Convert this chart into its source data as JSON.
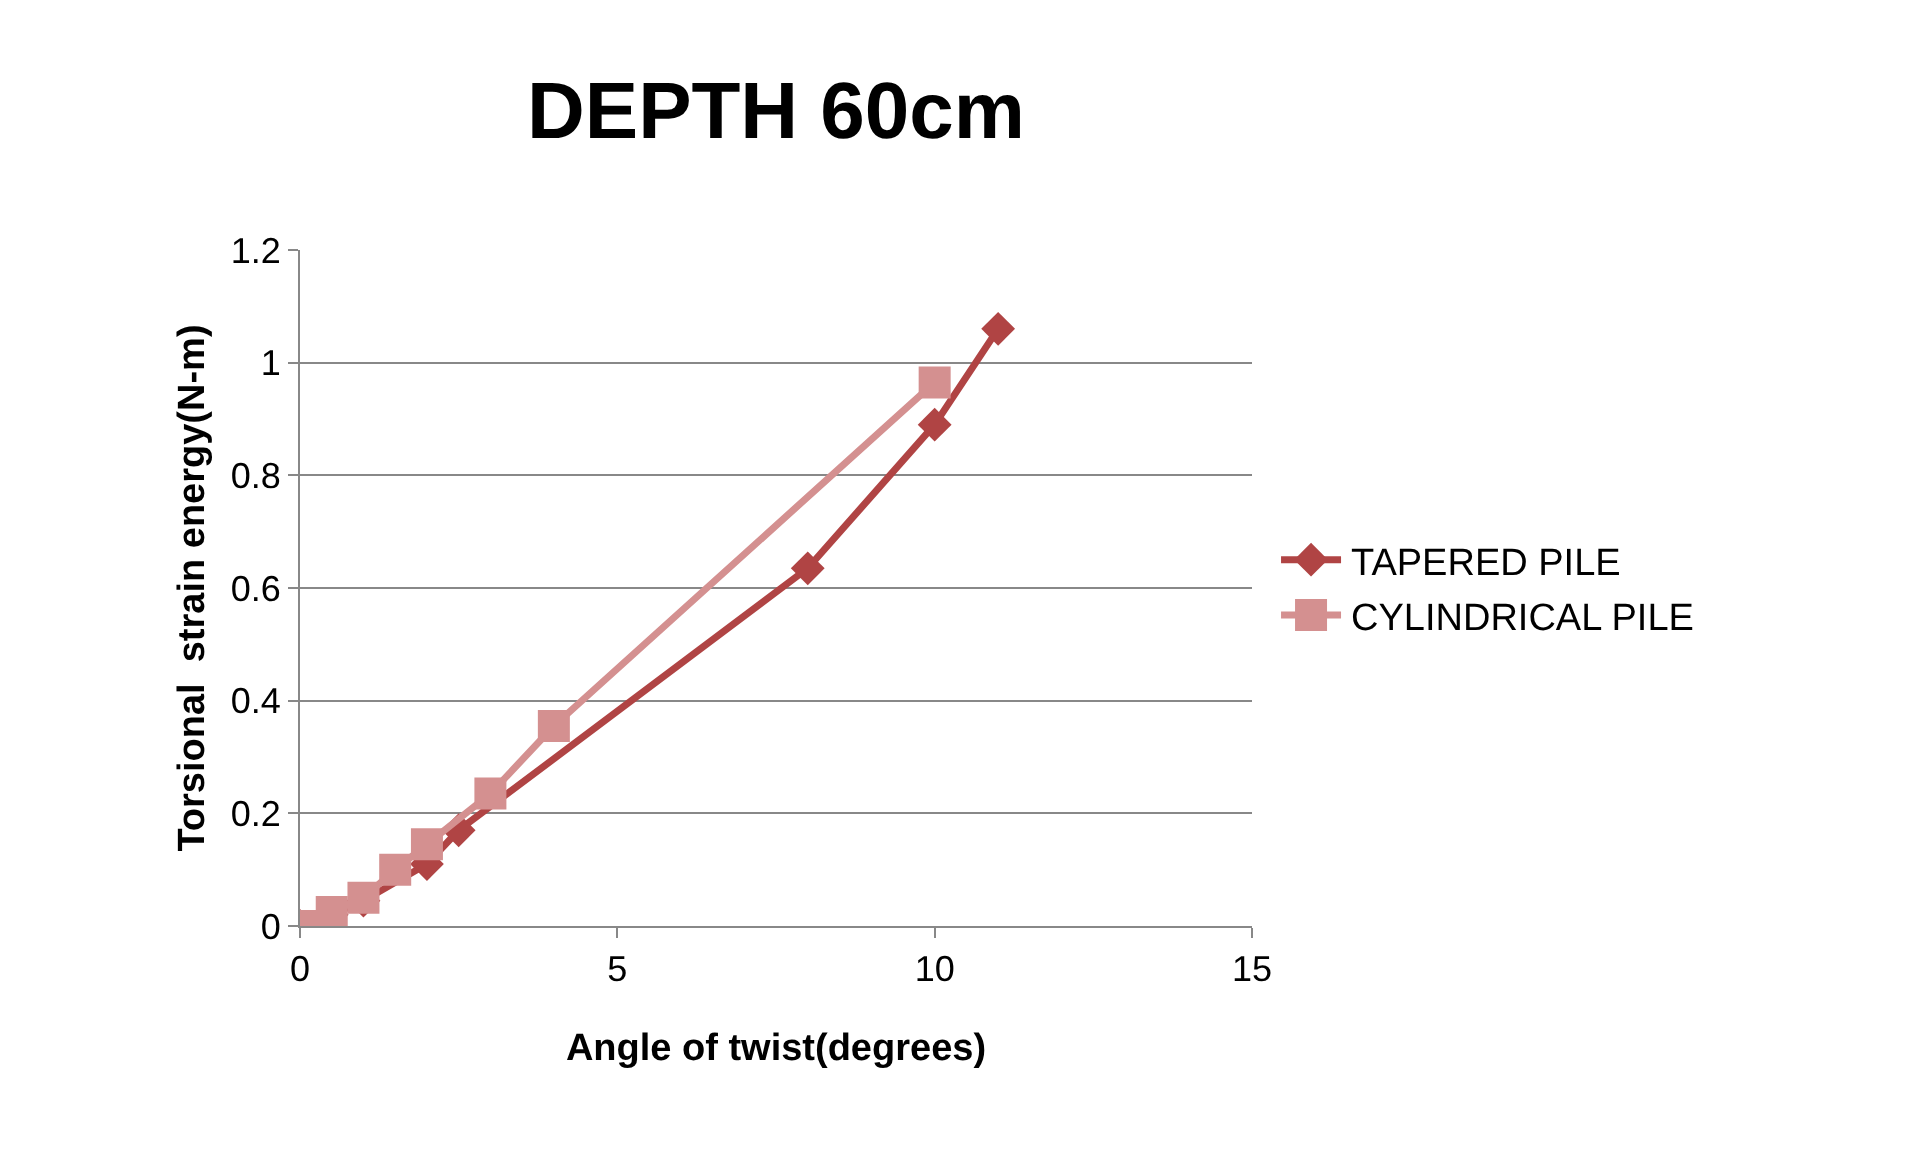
{
  "chart_data": {
    "type": "line",
    "title": "DEPTH 60cm",
    "xlabel": "Angle of twist(degrees)",
    "ylabel": "Torsional  strain energy(N-m)",
    "xlim": [
      0,
      15
    ],
    "xticks": [
      0,
      5,
      10,
      15
    ],
    "ylim": [
      0,
      1.2
    ],
    "yticks": [
      0,
      0.2,
      0.4,
      0.6,
      0.8,
      1,
      1.2
    ],
    "grid": "y",
    "legend": "right",
    "series": [
      {
        "name": "TAPERED PILE",
        "color": "#b04444",
        "marker": "diamond",
        "x": [
          0,
          0.5,
          1,
          1.5,
          2,
          2.5,
          3,
          8,
          10,
          11
        ],
        "values": [
          0,
          0.02,
          0.045,
          null,
          0.11,
          0.17,
          null,
          0.635,
          0.89,
          1.06
        ]
      },
      {
        "name": "CYLINDRICAL PILE",
        "color": "#d49090",
        "marker": "square",
        "x": [
          0,
          0.5,
          1,
          1.5,
          2,
          3,
          4,
          10
        ],
        "values": [
          0,
          0.025,
          0.05,
          0.1,
          0.145,
          0.235,
          0.355,
          0.965
        ]
      }
    ]
  }
}
